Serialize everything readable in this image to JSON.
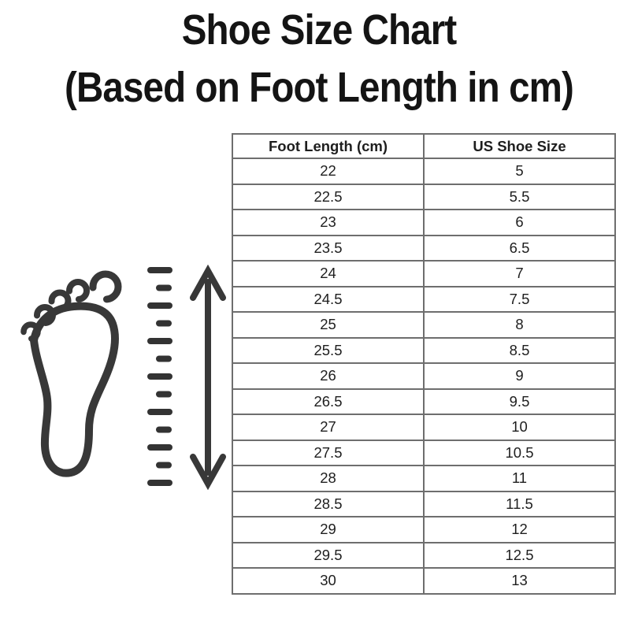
{
  "title": {
    "line1": "Shoe Size Chart",
    "line2": "(Based on Foot Length in cm)"
  },
  "table": {
    "headers": [
      "Foot Length (cm)",
      "US Shoe Size"
    ],
    "rows": [
      [
        "22",
        "5"
      ],
      [
        "22.5",
        "5.5"
      ],
      [
        "23",
        "6"
      ],
      [
        "23.5",
        "6.5"
      ],
      [
        "24",
        "7"
      ],
      [
        "24.5",
        "7.5"
      ],
      [
        "25",
        "8"
      ],
      [
        "25.5",
        "8.5"
      ],
      [
        "26",
        "9"
      ],
      [
        "26.5",
        "9.5"
      ],
      [
        "27",
        "10"
      ],
      [
        "27.5",
        "10.5"
      ],
      [
        "28",
        "11"
      ],
      [
        "28.5",
        "11.5"
      ],
      [
        "29",
        "12"
      ],
      [
        "29.5",
        "12.5"
      ],
      [
        "30",
        "13"
      ]
    ]
  },
  "illustration": {
    "description": "foot outline with ruler dashes and vertical double-headed measuring arrow",
    "icons": [
      "foot-icon",
      "ruler-dashes-icon",
      "double-arrow-icon"
    ]
  },
  "colors": {
    "background": "#ffffff",
    "title_text": "#141414",
    "table_border": "#6e6e6e",
    "table_text": "#1e1e1e",
    "icon_stroke": "#383838"
  },
  "chart_data": {
    "type": "table",
    "title": "Shoe Size Chart (Based on Foot Length in cm)",
    "columns": [
      "Foot Length (cm)",
      "US Shoe Size"
    ],
    "foot_length_cm": [
      22,
      22.5,
      23,
      23.5,
      24,
      24.5,
      25,
      25.5,
      26,
      26.5,
      27,
      27.5,
      28,
      28.5,
      29,
      29.5,
      30
    ],
    "us_shoe_size": [
      5,
      5.5,
      6,
      6.5,
      7,
      7.5,
      8,
      8.5,
      9,
      9.5,
      10,
      10.5,
      11,
      11.5,
      12,
      12.5,
      13
    ]
  }
}
